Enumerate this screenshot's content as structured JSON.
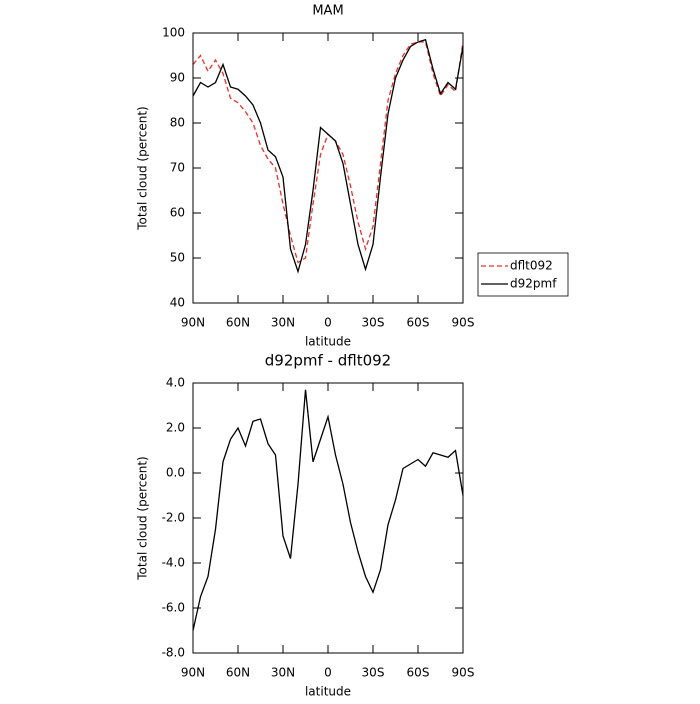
{
  "chart_data": [
    {
      "type": "line",
      "title": "MAM",
      "xlabel": "latitude",
      "ylabel": "Total cloud (percent)",
      "x": [
        90,
        85,
        80,
        75,
        70,
        65,
        60,
        55,
        50,
        45,
        40,
        35,
        30,
        25,
        20,
        15,
        10,
        5,
        0,
        -5,
        -10,
        -15,
        -20,
        -25,
        -30,
        -35,
        -40,
        -45,
        -50,
        -55,
        -60,
        -65,
        -70,
        -75,
        -80,
        -85,
        -90
      ],
      "series": [
        {
          "name": "dflt092",
          "color": "#e8312a",
          "dash": true,
          "values": [
            93,
            95,
            91.5,
            94,
            91,
            85.5,
            84.5,
            82.5,
            80,
            75,
            72,
            70,
            62,
            55,
            49,
            50,
            62,
            73,
            77.5,
            76,
            73,
            66,
            58,
            52,
            57,
            71,
            85,
            91,
            95,
            97.5,
            98,
            98,
            91,
            86,
            88.5,
            87,
            98
          ]
        },
        {
          "name": "d92pmf",
          "color": "#000000",
          "dash": false,
          "values": [
            86,
            89,
            88,
            89,
            93,
            88,
            87.5,
            86,
            84,
            80,
            74,
            72.5,
            68,
            52,
            47,
            53,
            65,
            79,
            77.5,
            76,
            71,
            62,
            53,
            47.5,
            53,
            68,
            82,
            90,
            94,
            97,
            98,
            98.5,
            92,
            86.5,
            89,
            87.5,
            97
          ]
        }
      ],
      "xlim": [
        90,
        -90
      ],
      "xticks": [
        {
          "value": 90,
          "label": "90N"
        },
        {
          "value": 60,
          "label": "60N"
        },
        {
          "value": 30,
          "label": "30N"
        },
        0,
        {
          "value": -30,
          "label": "30S"
        },
        {
          "value": -60,
          "label": "60S"
        },
        {
          "value": -90,
          "label": "90S"
        }
      ],
      "ylim": [
        40,
        100
      ],
      "yticks": [
        40,
        50,
        60,
        70,
        80,
        90,
        100
      ],
      "legend": "right"
    },
    {
      "type": "line",
      "title": "d92pmf - dflt092",
      "xlabel": "latitude",
      "ylabel": "Total cloud (percent)",
      "x": [
        90,
        85,
        80,
        75,
        70,
        65,
        60,
        55,
        50,
        45,
        40,
        35,
        30,
        25,
        20,
        15,
        10,
        5,
        0,
        -5,
        -10,
        -15,
        -20,
        -25,
        -30,
        -35,
        -40,
        -45,
        -50,
        -55,
        -60,
        -65,
        -70,
        -75,
        -80,
        -85,
        -90
      ],
      "series": [
        {
          "color": "#000000",
          "dash": false,
          "values": [
            -7.0,
            -5.5,
            -4.6,
            -2.5,
            0.5,
            1.5,
            2.0,
            1.2,
            2.3,
            2.4,
            1.3,
            0.8,
            -2.8,
            -3.8,
            -0.5,
            3.7,
            0.5,
            1.5,
            2.5,
            0.8,
            -0.5,
            -2.2,
            -3.5,
            -4.6,
            -5.3,
            -4.3,
            -2.3,
            -1.2,
            0.2,
            0.4,
            0.6,
            0.3,
            0.9,
            0.8,
            0.7,
            1.0,
            -1.0
          ]
        }
      ],
      "xlim": [
        90,
        -90
      ],
      "xticks": [
        {
          "value": 90,
          "label": "90N"
        },
        {
          "value": 60,
          "label": "60N"
        },
        {
          "value": 30,
          "label": "30N"
        },
        0,
        {
          "value": -30,
          "label": "30S"
        },
        {
          "value": -60,
          "label": "60S"
        },
        {
          "value": -90,
          "label": "90S"
        }
      ],
      "ylim": [
        -8,
        4
      ],
      "yticks": [
        {
          "value": -8,
          "label": "-8.0"
        },
        {
          "value": -6,
          "label": "-6.0"
        },
        {
          "value": -4,
          "label": "-4.0"
        },
        {
          "value": -2,
          "label": "-2.0"
        },
        {
          "value": 0,
          "label": "0.0"
        },
        {
          "value": 2,
          "label": "2.0"
        },
        {
          "value": 4,
          "label": "4.0"
        }
      ]
    }
  ]
}
